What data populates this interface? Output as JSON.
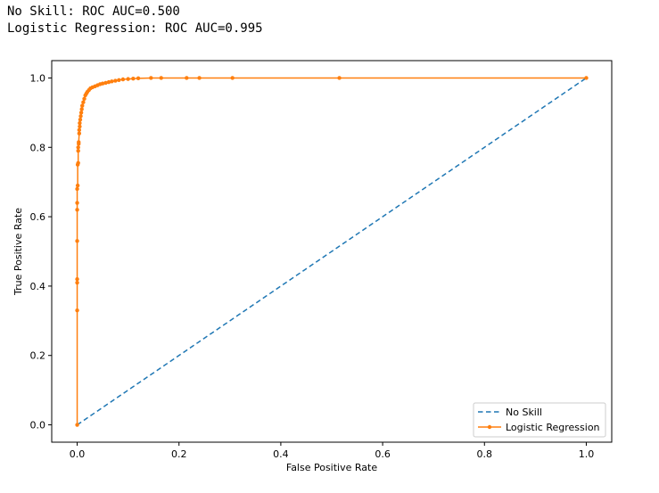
{
  "output_lines": [
    "No Skill: ROC AUC=0.500",
    "Logistic Regression: ROC AUC=0.995"
  ],
  "chart_data": {
    "type": "line",
    "title": "",
    "xlabel": "False Positive Rate",
    "ylabel": "True Positive Rate",
    "xlim": [
      -0.05,
      1.05
    ],
    "ylim": [
      -0.05,
      1.05
    ],
    "xticks": [
      0.0,
      0.2,
      0.4,
      0.6,
      0.8,
      1.0
    ],
    "yticks": [
      0.0,
      0.2,
      0.4,
      0.6,
      0.8,
      1.0
    ],
    "xtick_labels": [
      "0.0",
      "0.2",
      "0.4",
      "0.6",
      "0.8",
      "1.0"
    ],
    "ytick_labels": [
      "0.0",
      "0.2",
      "0.4",
      "0.6",
      "0.8",
      "1.0"
    ],
    "grid": false,
    "legend_position": "lower-right",
    "series": [
      {
        "name": "No Skill",
        "style": "dashed",
        "color": "#1f77b4",
        "x": [
          0.0,
          1.0
        ],
        "y": [
          0.0,
          1.0
        ]
      },
      {
        "name": "Logistic Regression",
        "style": "solid-dots",
        "color": "#ff7f0e",
        "x": [
          0.0,
          0.0,
          0.0,
          0.0,
          0.0,
          0.0,
          0.0,
          0.0,
          0.001,
          0.001,
          0.002,
          0.002,
          0.002,
          0.003,
          0.003,
          0.004,
          0.004,
          0.005,
          0.005,
          0.006,
          0.007,
          0.008,
          0.009,
          0.01,
          0.012,
          0.014,
          0.016,
          0.018,
          0.02,
          0.023,
          0.026,
          0.03,
          0.035,
          0.04,
          0.045,
          0.05,
          0.056,
          0.062,
          0.068,
          0.075,
          0.082,
          0.09,
          0.1,
          0.11,
          0.12,
          0.145,
          0.165,
          0.215,
          0.24,
          0.305,
          0.515,
          1.0
        ],
        "y": [
          0.0,
          0.33,
          0.41,
          0.42,
          0.53,
          0.62,
          0.64,
          0.68,
          0.69,
          0.75,
          0.755,
          0.79,
          0.8,
          0.81,
          0.815,
          0.84,
          0.85,
          0.86,
          0.87,
          0.88,
          0.89,
          0.9,
          0.91,
          0.92,
          0.93,
          0.94,
          0.95,
          0.955,
          0.96,
          0.965,
          0.97,
          0.973,
          0.976,
          0.979,
          0.982,
          0.984,
          0.986,
          0.988,
          0.99,
          0.992,
          0.994,
          0.996,
          0.997,
          0.998,
          0.999,
          1.0,
          1.0,
          1.0,
          1.0,
          1.0,
          1.0,
          1.0
        ]
      }
    ]
  }
}
